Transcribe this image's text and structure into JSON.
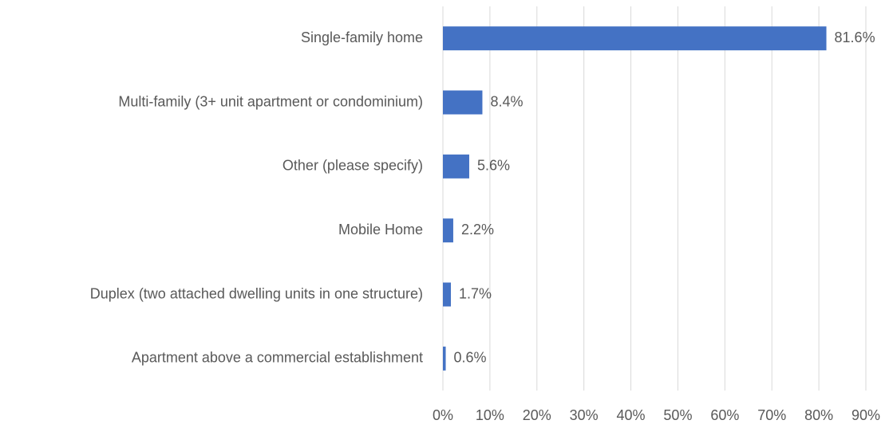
{
  "chart_data": {
    "type": "bar",
    "orientation": "horizontal",
    "categories": [
      "Single-family home",
      "Multi-family (3+ unit apartment or condominium)",
      "Other (please specify)",
      "Mobile Home",
      "Duplex (two attached dwelling units in one structure)",
      "Apartment above a commercial establishment"
    ],
    "values": [
      81.6,
      8.4,
      5.6,
      2.2,
      1.7,
      0.6
    ],
    "value_labels": [
      "81.6%",
      "8.4%",
      "5.6%",
      "2.2%",
      "1.7%",
      "0.6%"
    ],
    "color": "#4472c4",
    "xlim": [
      0,
      90
    ],
    "xticks": [
      {
        "value": 0,
        "label": "0%"
      },
      {
        "value": 10,
        "label": "10%"
      },
      {
        "value": 20,
        "label": "20%"
      },
      {
        "value": 30,
        "label": "30%"
      },
      {
        "value": 40,
        "label": "40%"
      },
      {
        "value": 50,
        "label": "50%"
      },
      {
        "value": 60,
        "label": "60%"
      },
      {
        "value": 70,
        "label": "70%"
      },
      {
        "value": 80,
        "label": "80%"
      },
      {
        "value": 90,
        "label": "90%"
      }
    ],
    "grid": true
  }
}
